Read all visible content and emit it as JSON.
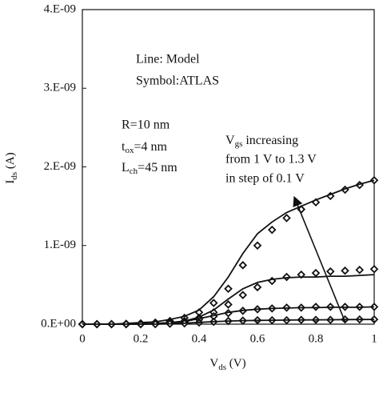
{
  "chart_data": {
    "type": "line",
    "x_label": {
      "main": "V",
      "sub": "ds",
      "rest": " (V)"
    },
    "y_label": {
      "main": "I",
      "sub": "ds",
      "rest": " (A)"
    },
    "x": [
      0,
      0.05,
      0.1,
      0.15,
      0.2,
      0.25,
      0.3,
      0.35,
      0.4,
      0.45,
      0.5,
      0.55,
      0.6,
      0.65,
      0.7,
      0.75,
      0.8,
      0.85,
      0.9,
      0.95,
      1
    ],
    "series": [
      {
        "style": "marker",
        "color": "#111111",
        "values": [
          0,
          0,
          0,
          5e-12,
          1e-11,
          2e-11,
          4e-11,
          8e-11,
          1.5e-10,
          2.7e-10,
          4.5e-10,
          7.5e-10,
          1e-09,
          1.2e-09,
          1.35e-09,
          1.46e-09,
          1.55e-09,
          1.63e-09,
          1.71e-09,
          1.77e-09,
          1.83e-09
        ]
      },
      {
        "style": "line",
        "color": "#111111",
        "values": [
          0,
          0,
          0,
          1e-11,
          2e-11,
          3e-11,
          6e-11,
          1e-10,
          1.8e-10,
          3.5e-10,
          6e-10,
          9e-10,
          1.15e-09,
          1.3e-09,
          1.42e-09,
          1.5e-09,
          1.58e-09,
          1.65e-09,
          1.72e-09,
          1.78e-09,
          1.83e-09
        ]
      },
      {
        "style": "marker",
        "color": "#111111",
        "values": [
          0,
          0,
          0,
          0,
          5e-12,
          1e-11,
          2e-11,
          4e-11,
          8e-11,
          1.5e-10,
          2.5e-10,
          3.7e-10,
          4.7e-10,
          5.5e-10,
          6e-10,
          6.3e-10,
          6.5e-10,
          6.7e-10,
          6.8e-10,
          6.9e-10,
          7e-10
        ]
      },
      {
        "style": "line",
        "color": "#111111",
        "values": [
          0,
          0,
          0,
          0,
          5e-12,
          1e-11,
          2e-11,
          4e-11,
          9e-11,
          1.8e-10,
          3.2e-10,
          4.5e-10,
          5.3e-10,
          5.7e-10,
          5.9e-10,
          6e-10,
          6e-10,
          6.1e-10,
          6.1e-10,
          6.2e-10,
          6.3e-10
        ]
      },
      {
        "style": "marker",
        "color": "#111111",
        "values": [
          0,
          0,
          0,
          0,
          0,
          5e-12,
          1e-11,
          3e-11,
          6e-11,
          1e-10,
          1.4e-10,
          1.7e-10,
          1.9e-10,
          2e-10,
          2.1e-10,
          2.1e-10,
          2.2e-10,
          2.2e-10,
          2.2e-10,
          2.2e-10,
          2.2e-10
        ]
      },
      {
        "style": "line",
        "color": "#111111",
        "values": [
          0,
          0,
          0,
          0,
          0,
          5e-12,
          1.2e-11,
          3.5e-11,
          7e-11,
          1.1e-10,
          1.5e-10,
          1.75e-10,
          1.9e-10,
          2e-10,
          2.05e-10,
          2.1e-10,
          2.1e-10,
          2.15e-10,
          2.15e-10,
          2.15e-10,
          2.2e-10
        ]
      },
      {
        "style": "marker",
        "color": "#111111",
        "values": [
          0,
          0,
          0,
          0,
          0,
          0,
          5e-12,
          1e-11,
          2e-11,
          3e-11,
          4e-11,
          4.5e-11,
          5e-11,
          5e-11,
          5e-11,
          5.5e-11,
          5.5e-11,
          5.5e-11,
          6e-11,
          6e-11,
          6e-11
        ]
      },
      {
        "style": "line",
        "color": "#111111",
        "values": [
          0,
          0,
          0,
          0,
          0,
          0,
          5e-12,
          1.2e-11,
          2.2e-11,
          3.2e-11,
          4e-11,
          4.5e-11,
          4.8e-11,
          5e-11,
          5.2e-11,
          5.4e-11,
          5.5e-11,
          5.6e-11,
          5.8e-11,
          5.9e-11,
          6e-11
        ]
      }
    ],
    "xlim": [
      0,
      1
    ],
    "xticks": [
      0,
      0.2,
      0.4,
      0.6,
      0.8,
      1
    ],
    "ylim": [
      0,
      4e-09
    ],
    "yticks": [
      {
        "value": 0,
        "label": "0.E+00"
      },
      {
        "value": 1e-09,
        "label": "1.E-09"
      },
      {
        "value": 2e-09,
        "label": "2.E-09"
      },
      {
        "value": 3e-09,
        "label": "3.E-09"
      },
      {
        "value": 4e-09,
        "label": "4.E-09"
      }
    ],
    "annotations": {
      "line_label": "Line: Model",
      "symbol_label": "Symbol:ATLAS",
      "radius": "R=10 nm",
      "tox": {
        "main": "t",
        "sub": "ox",
        "rest": "=4 nm"
      },
      "lch": {
        "main": "L",
        "sub": "ch",
        "rest": "=45 nm"
      },
      "vgs1": {
        "main": "V",
        "sub": "gs",
        "rest": " increasing"
      },
      "vgs2": "from 1 V to 1.3 V",
      "vgs3": "in step of 0.1 V"
    }
  }
}
